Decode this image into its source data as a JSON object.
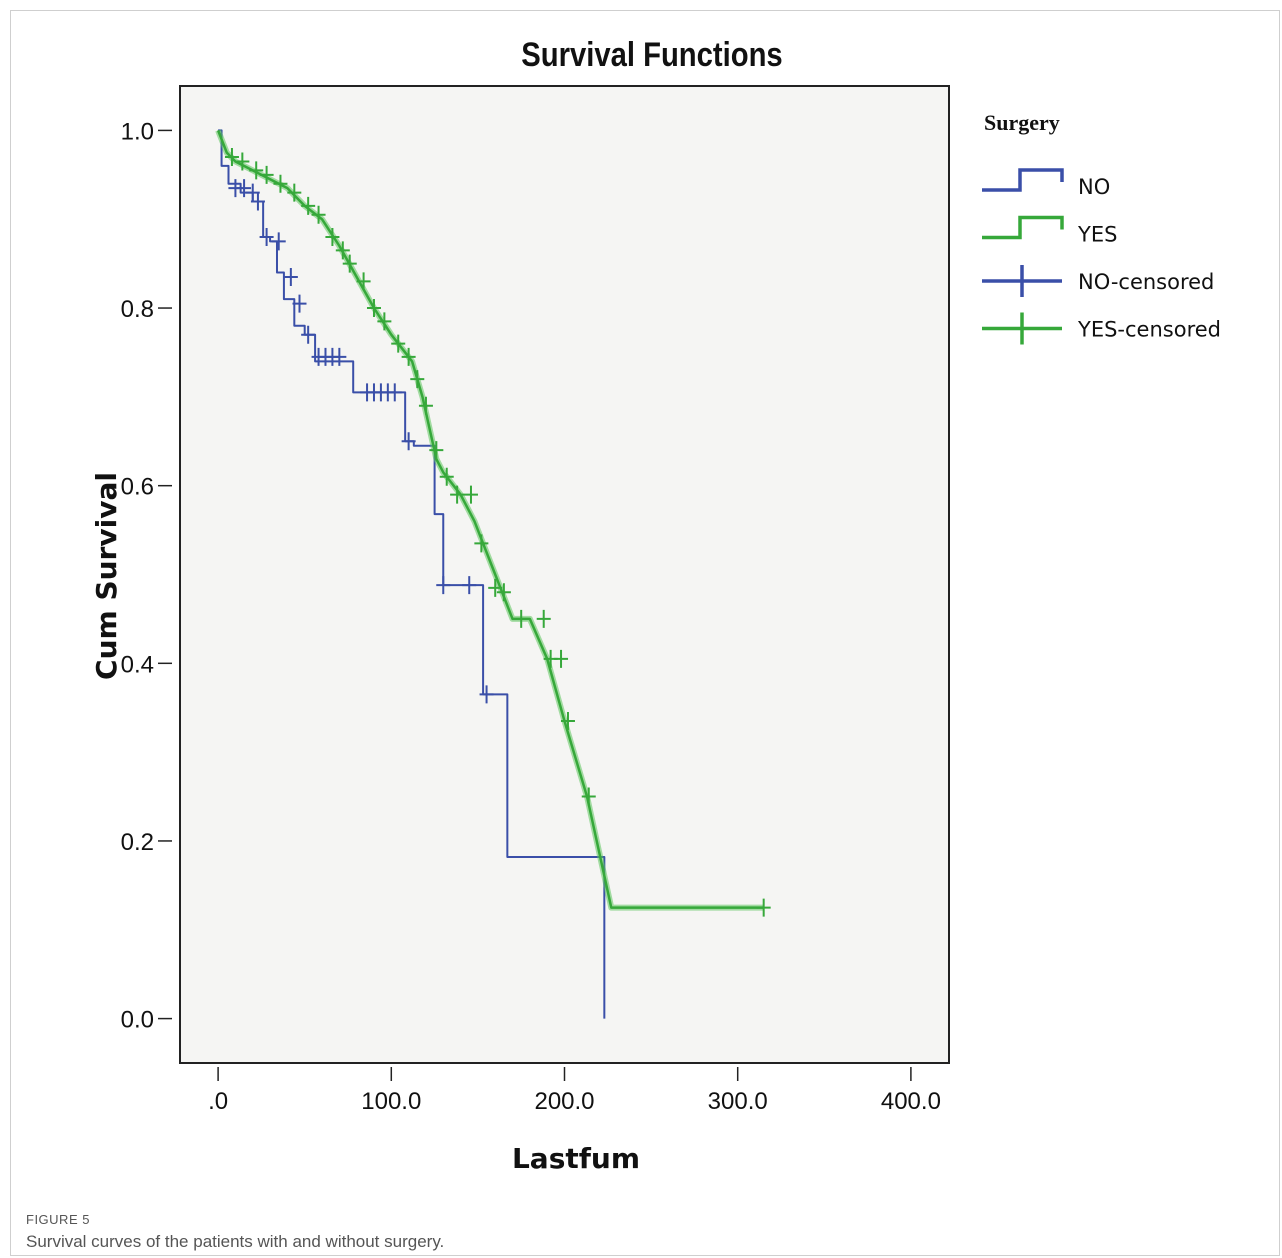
{
  "figure": {
    "label": "FIGURE 5",
    "caption": "Survival curves of the patients with and without surgery."
  },
  "colors": {
    "no": "#3a4fa8",
    "yes": "#36a83a",
    "yes_light": "#5cc45c",
    "frame": "#222222"
  },
  "chart_data": {
    "type": "line",
    "title": "Survival Functions",
    "xlabel": "Lastfum",
    "ylabel": "Cum Survival",
    "xlim": [
      -22,
      422
    ],
    "ylim": [
      -0.05,
      1.05
    ],
    "xticks": [
      0,
      100,
      200,
      300,
      400
    ],
    "xtick_labels": [
      ".0",
      "100.0",
      "200.0",
      "300.0",
      "400.0"
    ],
    "yticks": [
      0.0,
      0.2,
      0.4,
      0.6,
      0.8,
      1.0
    ],
    "ytick_labels": [
      "0.0",
      "0.2",
      "0.4",
      "0.6",
      "0.8",
      "1.0"
    ],
    "grid": false,
    "legend": {
      "title": "Surgery",
      "placement": "right",
      "entries": [
        "NO",
        "YES",
        "NO-censored",
        "YES-censored"
      ]
    },
    "series": [
      {
        "name": "NO",
        "step": true,
        "color": "#3a4fa8",
        "x": [
          0,
          2,
          6,
          13,
          20,
          26,
          30,
          34,
          38,
          44,
          50,
          56,
          78,
          108,
          113,
          125,
          130,
          153,
          167,
          223,
          223
        ],
        "y": [
          1.0,
          0.96,
          0.94,
          0.93,
          0.92,
          0.88,
          0.875,
          0.84,
          0.81,
          0.78,
          0.77,
          0.74,
          0.705,
          0.65,
          0.645,
          0.568,
          0.488,
          0.365,
          0.182,
          0.182,
          0.0
        ],
        "censored_x": [
          10,
          15,
          20,
          23,
          28,
          35,
          42,
          47,
          52,
          58,
          62,
          66,
          70,
          86,
          90,
          94,
          98,
          102,
          110,
          130,
          145,
          155
        ],
        "censored_y": [
          0.935,
          0.935,
          0.93,
          0.92,
          0.88,
          0.875,
          0.835,
          0.805,
          0.77,
          0.745,
          0.745,
          0.745,
          0.745,
          0.705,
          0.705,
          0.705,
          0.705,
          0.705,
          0.65,
          0.488,
          0.488,
          0.365
        ]
      },
      {
        "name": "YES",
        "step": false,
        "color": "#36a83a",
        "x": [
          0,
          5,
          10,
          20,
          30,
          40,
          50,
          60,
          70,
          80,
          90,
          100,
          108,
          112,
          118,
          122,
          126,
          130,
          140,
          148,
          153,
          158,
          163,
          170,
          180,
          190,
          200,
          213,
          227,
          315
        ],
        "y": [
          1.0,
          0.975,
          0.965,
          0.955,
          0.945,
          0.935,
          0.915,
          0.9,
          0.87,
          0.835,
          0.8,
          0.77,
          0.75,
          0.74,
          0.7,
          0.665,
          0.63,
          0.615,
          0.59,
          0.56,
          0.535,
          0.51,
          0.485,
          0.45,
          0.45,
          0.405,
          0.335,
          0.25,
          0.125,
          0.125
        ],
        "censored_x": [
          8,
          14,
          22,
          28,
          36,
          44,
          52,
          58,
          66,
          72,
          76,
          84,
          90,
          96,
          104,
          110,
          115,
          120,
          126,
          132,
          138,
          146,
          152,
          160,
          165,
          175,
          188,
          192,
          198,
          202,
          214,
          315
        ],
        "censored_y": [
          0.97,
          0.965,
          0.955,
          0.95,
          0.94,
          0.93,
          0.915,
          0.905,
          0.88,
          0.865,
          0.85,
          0.83,
          0.8,
          0.785,
          0.76,
          0.745,
          0.72,
          0.69,
          0.64,
          0.61,
          0.59,
          0.59,
          0.535,
          0.485,
          0.48,
          0.45,
          0.45,
          0.405,
          0.405,
          0.335,
          0.25,
          0.125
        ]
      }
    ]
  }
}
